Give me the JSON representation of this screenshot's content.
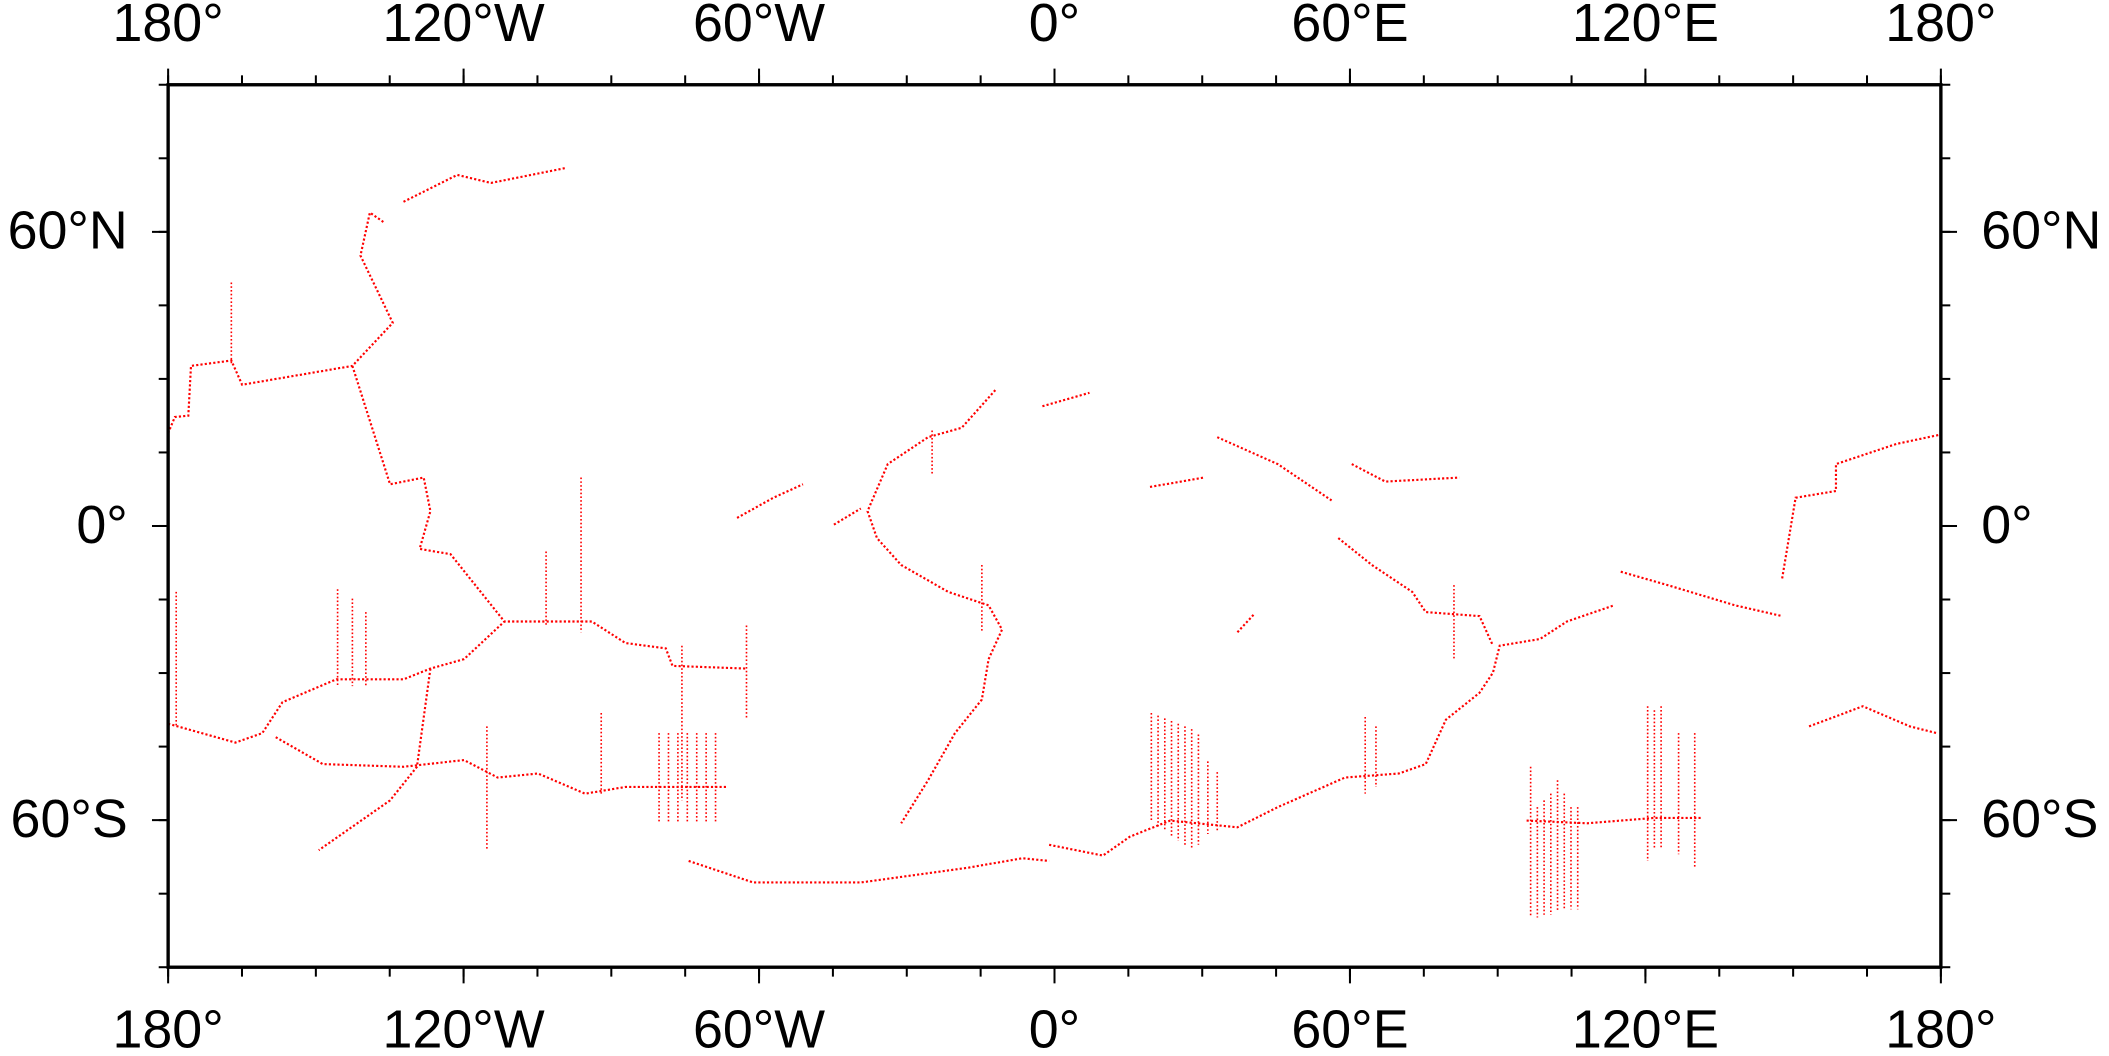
{
  "map": {
    "xlim": [
      -180,
      180
    ],
    "ylim": [
      -90,
      90
    ],
    "xticks": [
      {
        "value": -180,
        "label": "180°"
      },
      {
        "value": -120,
        "label": "120°W"
      },
      {
        "value": -60,
        "label": "60°W"
      },
      {
        "value": 0,
        "label": "0°"
      },
      {
        "value": 60,
        "label": "60°E"
      },
      {
        "value": 120,
        "label": "120°E"
      },
      {
        "value": 180,
        "label": "180°"
      }
    ],
    "yticks": [
      {
        "value": 60,
        "label": "60°N"
      },
      {
        "value": 0,
        "label": "0°"
      },
      {
        "value": -60,
        "label": "60°S"
      }
    ],
    "minor_xticks": [
      -180,
      -165,
      -150,
      -135,
      -120,
      -105,
      -90,
      -75,
      -60,
      -45,
      -30,
      -15,
      0,
      15,
      30,
      45,
      60,
      75,
      90,
      105,
      120,
      135,
      150,
      165,
      180
    ],
    "minor_yticks": [
      -90,
      -75,
      -60,
      -45,
      -30,
      -15,
      0,
      15,
      30,
      45,
      60,
      75,
      90
    ],
    "line_color": "#ff0000"
  }
}
